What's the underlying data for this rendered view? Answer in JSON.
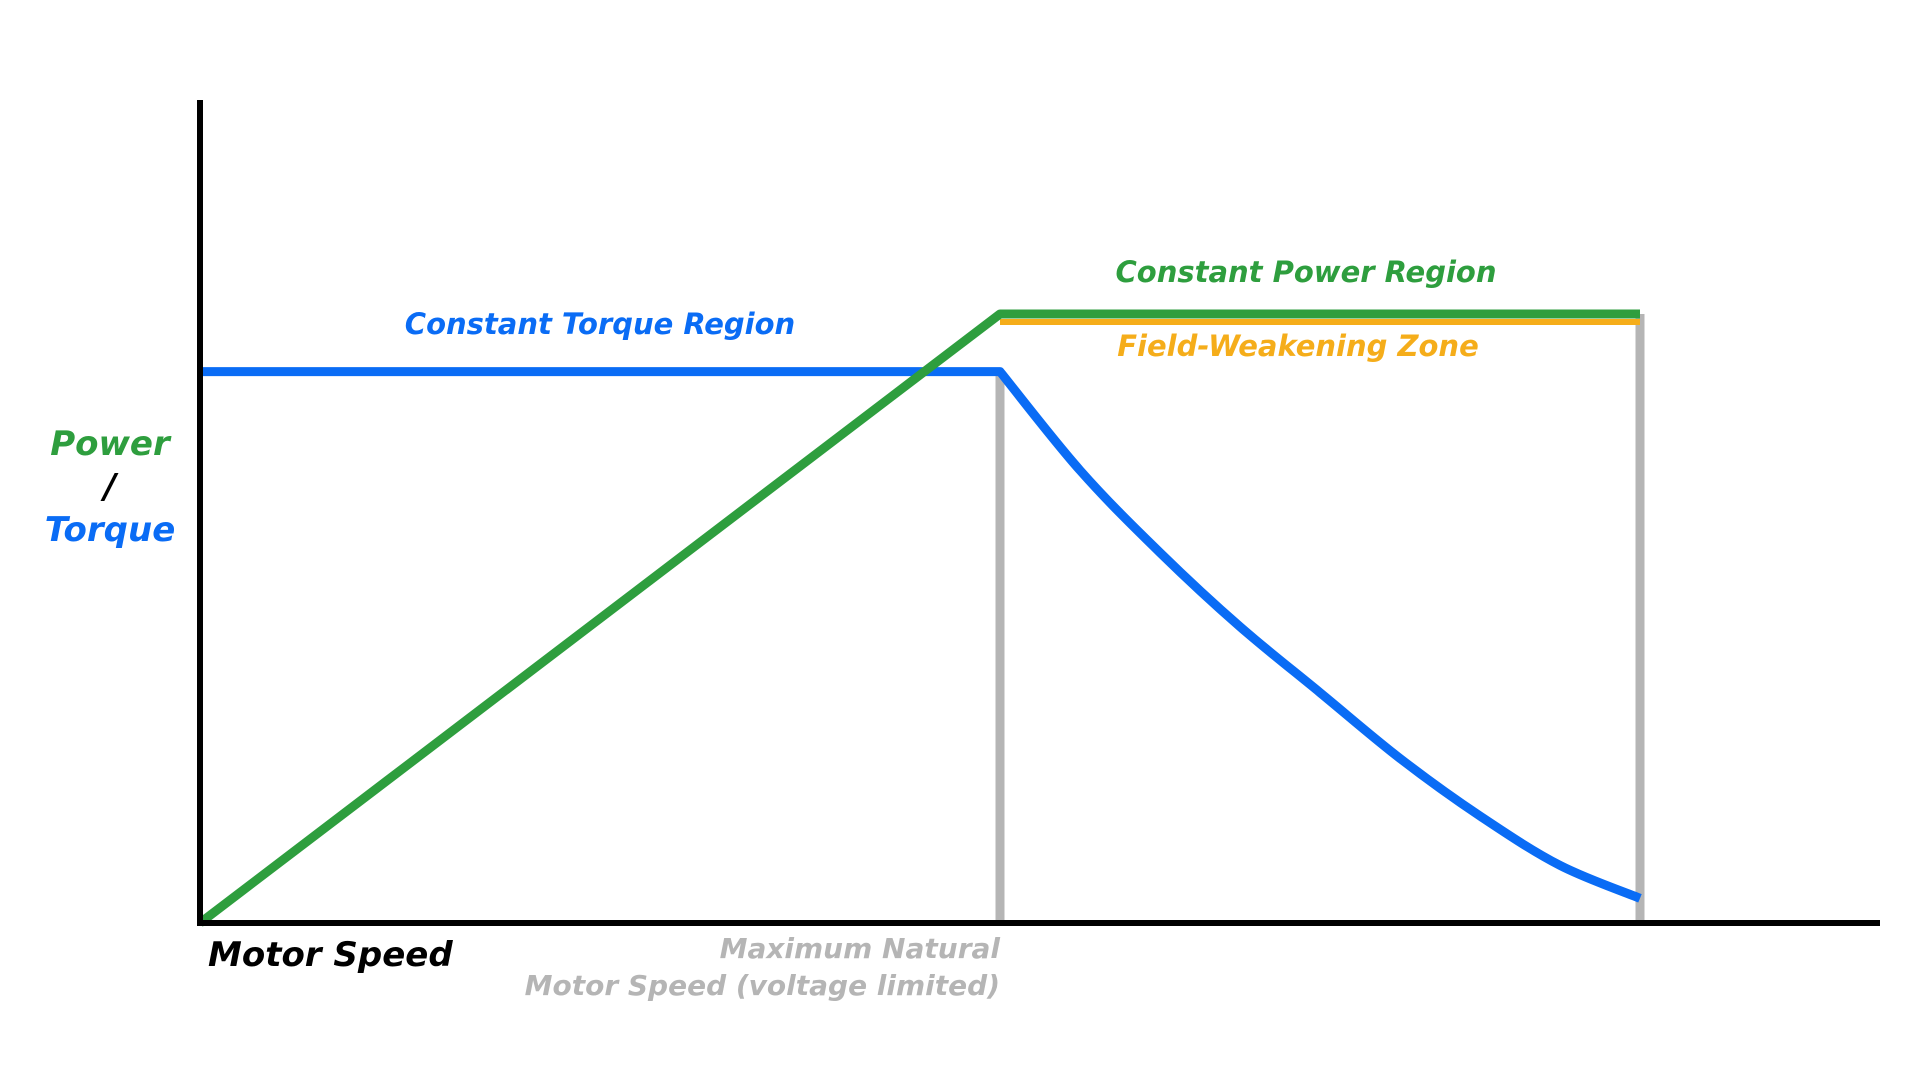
{
  "colors": {
    "power": "#2e9e3e",
    "torque": "#0a6cf5",
    "field_weakening": "#f5ad1a",
    "base_speed_line": "#b5b5b5",
    "axis": "#000000",
    "background": "#ffffff"
  },
  "chart_data": {
    "type": "line",
    "xlabel": "Motor Speed",
    "ylabel": {
      "power": "Power",
      "separator": "/",
      "torque": "Torque"
    },
    "xlim": [
      0,
      2.1
    ],
    "ylim": [
      0,
      1.0
    ],
    "grid": false,
    "legend": "none",
    "series": [
      {
        "name": "Power",
        "color": "#2e9e3e",
        "points": [
          [
            0,
            0.0
          ],
          [
            1.0,
            0.74
          ],
          [
            1.8,
            0.74
          ]
        ]
      },
      {
        "name": "Torque",
        "color": "#0a6cf5",
        "points": [
          [
            0,
            0.67
          ],
          [
            1.0,
            0.67
          ],
          [
            1.1,
            0.55
          ],
          [
            1.2,
            0.45
          ],
          [
            1.3,
            0.36
          ],
          [
            1.4,
            0.28
          ],
          [
            1.5,
            0.2
          ],
          [
            1.6,
            0.13
          ],
          [
            1.7,
            0.07
          ],
          [
            1.8,
            0.03
          ]
        ]
      }
    ],
    "regions": {
      "constant_torque": "Constant Torque Region",
      "constant_power": "Constant Power Region",
      "field_weakening": "Field-Weakening Zone"
    },
    "markers": {
      "base_speed_x": 1.0,
      "max_speed_x": 1.8,
      "base_speed_label_line1": "Maximum Natural",
      "base_speed_label_line2": "Motor Speed (voltage limited)"
    }
  }
}
